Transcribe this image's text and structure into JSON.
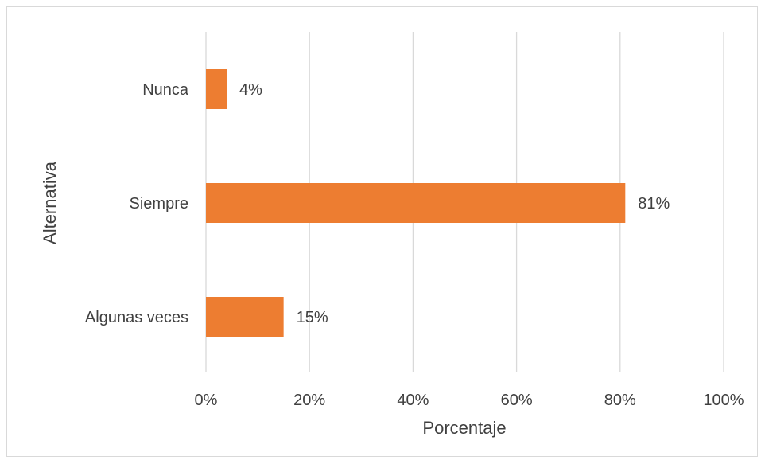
{
  "chart_data": {
    "type": "bar",
    "orientation": "horizontal",
    "categories": [
      "Nunca",
      "Siempre",
      "Algunas veces"
    ],
    "values": [
      4,
      81,
      15
    ],
    "value_labels": [
      "4%",
      "81%",
      "15%"
    ],
    "xlabel": "Porcentaje",
    "ylabel": "Alternativa",
    "xlim": [
      0,
      100
    ],
    "xticks": [
      "0%",
      "20%",
      "40%",
      "60%",
      "80%",
      "100%"
    ],
    "grid": true,
    "legend": "none",
    "bar_color": "#ED7D31",
    "grid_color": "#D9D9D9",
    "text_color": "#404040"
  }
}
